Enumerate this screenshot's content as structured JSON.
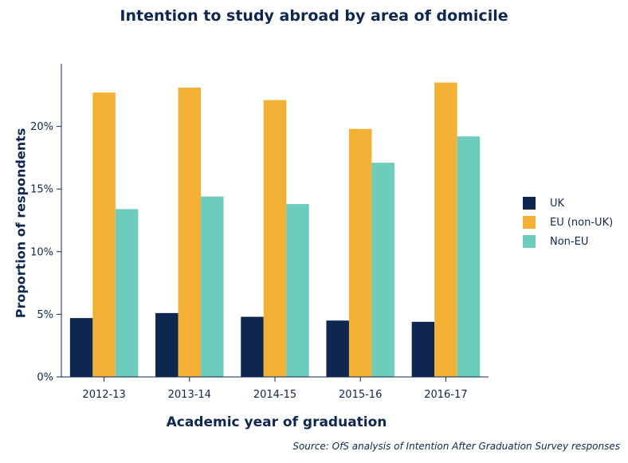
{
  "chart_data": {
    "type": "bar",
    "title": "Intention to study abroad by area of domicile",
    "xlabel": "Academic year of graduation",
    "ylabel": "Proportion of respondents",
    "categories": [
      "2012-13",
      "2013-14",
      "2014-15",
      "2015-16",
      "2016-17"
    ],
    "series": [
      {
        "name": "UK",
        "color": "#0e2751",
        "values": [
          4.7,
          5.1,
          4.8,
          4.5,
          4.4
        ]
      },
      {
        "name": "EU (non-UK)",
        "color": "#f2b134",
        "values": [
          22.7,
          23.1,
          22.1,
          19.8,
          23.5
        ]
      },
      {
        "name": "Non-EU",
        "color": "#6ccdbc",
        "values": [
          13.4,
          14.4,
          13.8,
          17.1,
          19.2
        ]
      }
    ],
    "ylim": [
      0,
      25
    ],
    "yticks": [
      0,
      5,
      10,
      15,
      20
    ],
    "ytick_labels": [
      "0%",
      "5%",
      "10%",
      "15%",
      "20%"
    ],
    "legend_position": "right",
    "grid": false,
    "source": "Source: OfS analysis of Intention After Graduation Survey responses"
  }
}
